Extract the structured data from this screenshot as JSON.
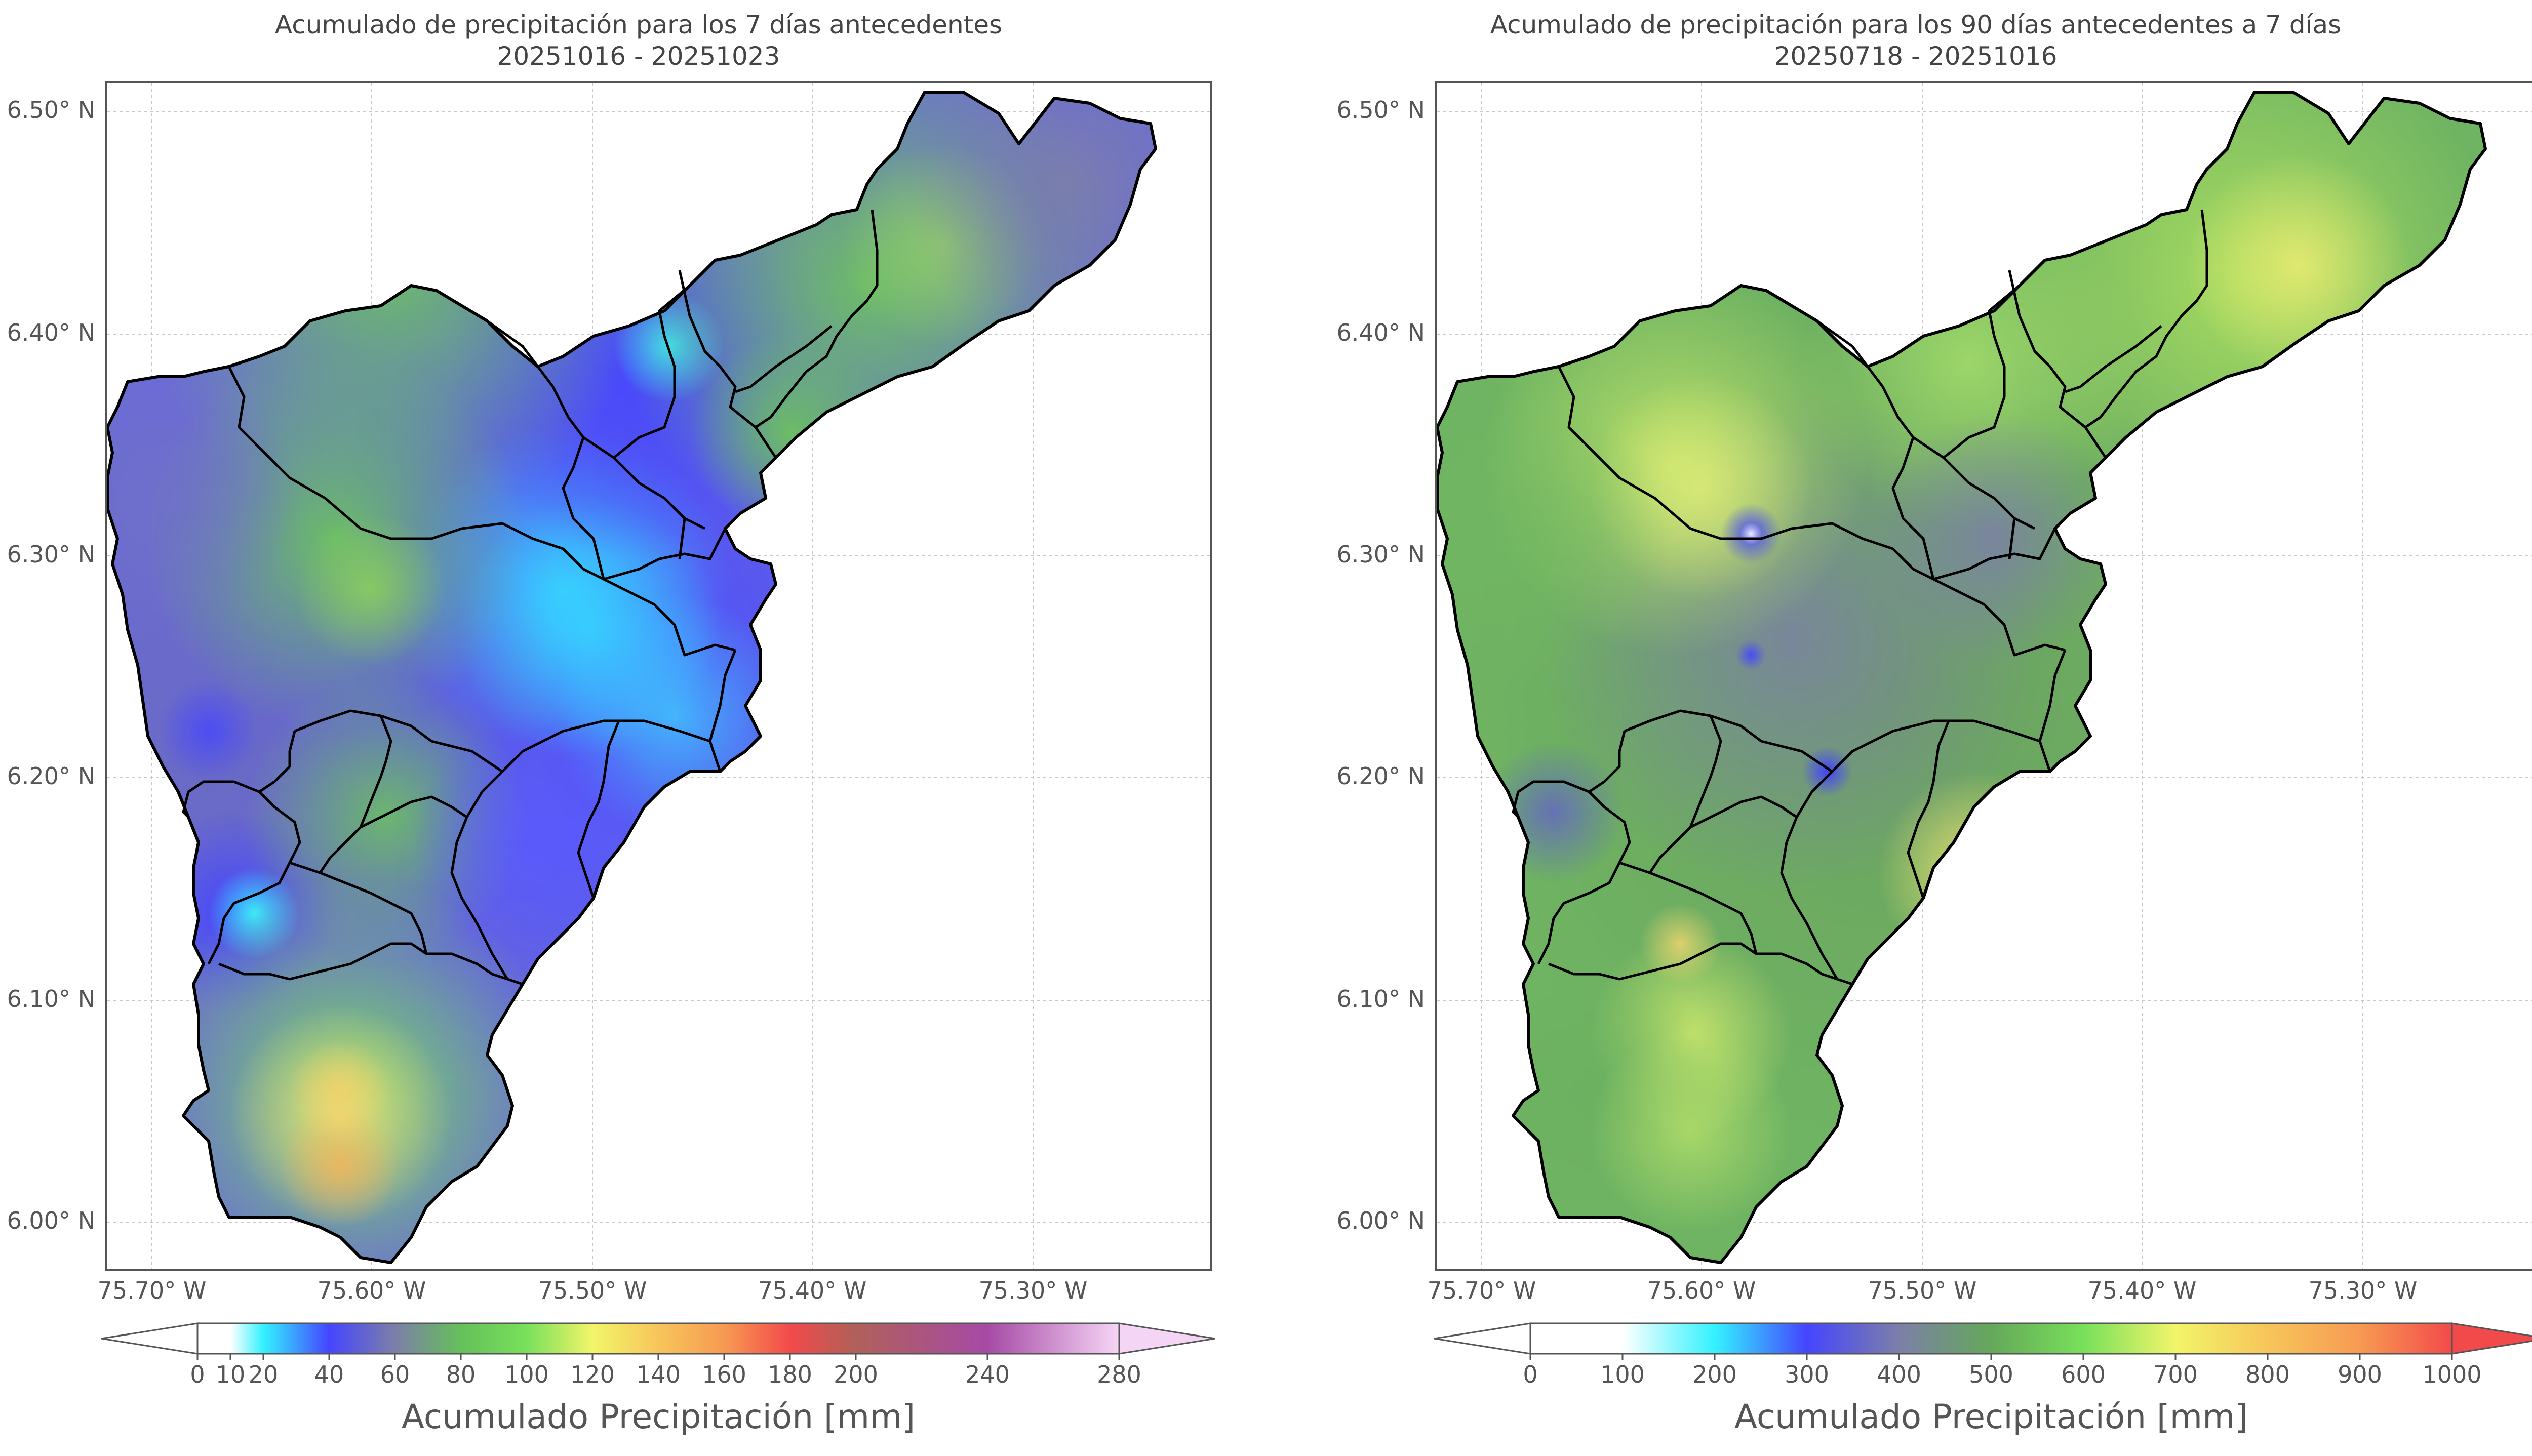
{
  "colors": {
    "frame": "#555555",
    "border_line": "#000000",
    "grid": "#c8c8c8",
    "white": "#ffffff"
  },
  "panels": [
    {
      "title_line1": "Acumulado de precipitación para los 7 días antecedentes",
      "title_line2": "20251016 - 20251023",
      "y_ticks": [
        "6.50° N",
        "6.40° N",
        "6.30° N",
        "6.20° N",
        "6.10° N",
        "6.00° N"
      ],
      "x_ticks": [
        "75.70° W",
        "75.60° W",
        "75.50° W",
        "75.40° W",
        "75.30° W"
      ],
      "colorbar": {
        "label": "Acumulado Precipitación [mm]",
        "ticks": [
          "0",
          "10",
          "20",
          "40",
          "60",
          "80",
          "100",
          "120",
          "140",
          "160",
          "180",
          "200",
          "240",
          "280"
        ],
        "tick_values": [
          0,
          10,
          20,
          40,
          60,
          80,
          100,
          120,
          140,
          160,
          180,
          200,
          240,
          280
        ],
        "vmin": 0,
        "vmax": 280,
        "extend": "both",
        "stops": [
          {
            "v": 0,
            "c": "#ffffff"
          },
          {
            "v": 10,
            "c": "#ffffff"
          },
          {
            "v": 20,
            "c": "#33f2ff"
          },
          {
            "v": 40,
            "c": "#4545ff"
          },
          {
            "v": 60,
            "c": "#7c7fa8"
          },
          {
            "v": 80,
            "c": "#65c05a"
          },
          {
            "v": 100,
            "c": "#78e05a"
          },
          {
            "v": 120,
            "c": "#f2f56a"
          },
          {
            "v": 140,
            "c": "#f7c55a"
          },
          {
            "v": 160,
            "c": "#f79a52"
          },
          {
            "v": 180,
            "c": "#f24a4a"
          },
          {
            "v": 200,
            "c": "#b0605a"
          },
          {
            "v": 240,
            "c": "#a64aa6"
          },
          {
            "v": 280,
            "c": "#f5d5f5"
          }
        ],
        "under_color": "#ffffff",
        "over_color": "#f5d5f5"
      }
    },
    {
      "title_line1": "Acumulado de precipitación para los 90 días antecedentes a 7 días",
      "title_line2": "20250718 - 20251016",
      "y_ticks": [
        "6.50° N",
        "6.40° N",
        "6.30° N",
        "6.20° N",
        "6.10° N",
        "6.00° N"
      ],
      "x_ticks": [
        "75.70° W",
        "75.60° W",
        "75.50° W",
        "75.40° W",
        "75.30° W"
      ],
      "colorbar": {
        "label": "Acumulado Precipitación [mm]",
        "ticks": [
          "0",
          "100",
          "200",
          "300",
          "400",
          "500",
          "600",
          "700",
          "800",
          "900",
          "1000"
        ],
        "tick_values": [
          0,
          100,
          200,
          300,
          400,
          500,
          600,
          700,
          800,
          900,
          1000
        ],
        "vmin": 0,
        "vmax": 1000,
        "extend": "both",
        "stops": [
          {
            "v": 0,
            "c": "#ffffff"
          },
          {
            "v": 100,
            "c": "#ffffff"
          },
          {
            "v": 200,
            "c": "#33f2ff"
          },
          {
            "v": 300,
            "c": "#4545ff"
          },
          {
            "v": 400,
            "c": "#7c7fa8"
          },
          {
            "v": 500,
            "c": "#65a85a"
          },
          {
            "v": 600,
            "c": "#78e05a"
          },
          {
            "v": 700,
            "c": "#f2f56a"
          },
          {
            "v": 800,
            "c": "#f7c55a"
          },
          {
            "v": 900,
            "c": "#f79a52"
          },
          {
            "v": 1000,
            "c": "#f24a4a"
          }
        ],
        "under_color": "#ffffff",
        "over_color": "#f24a4a"
      }
    }
  ]
}
